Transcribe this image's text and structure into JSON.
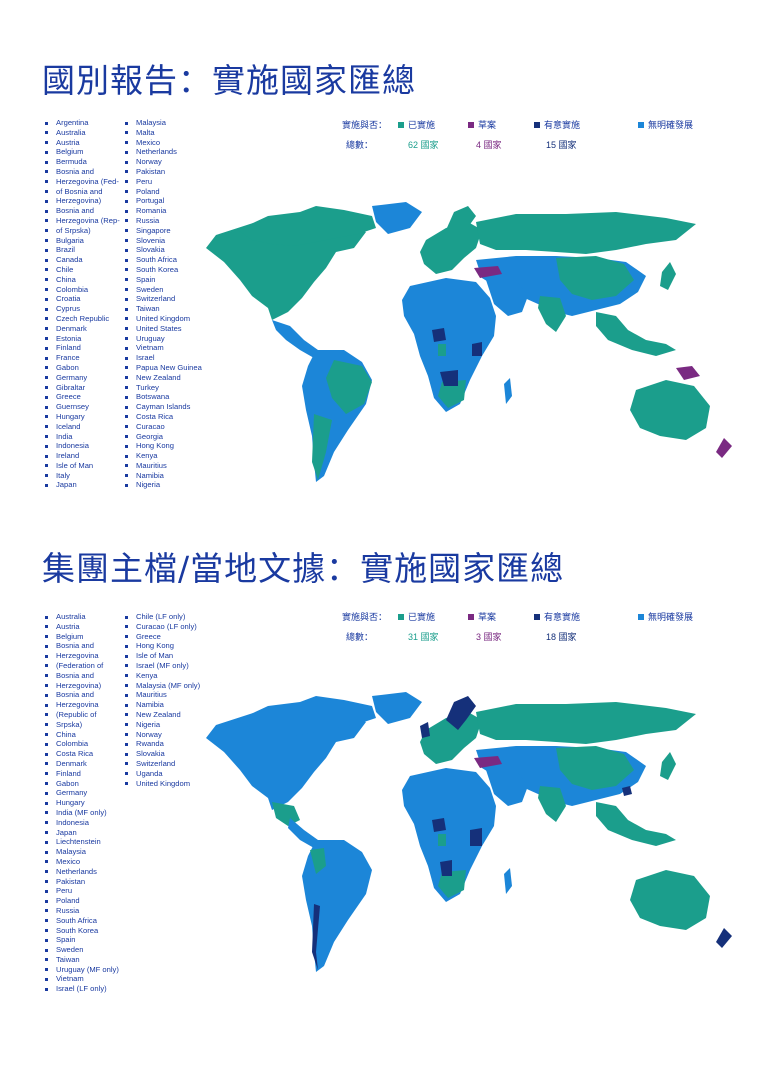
{
  "colors": {
    "implemented": "#1b9e8c",
    "draft": "#7a2a82",
    "intended": "#15307a",
    "no_plan": "#1c86d8"
  },
  "report1": {
    "title": "國別報告：實施國家匯總",
    "legend": {
      "label": "實施與否：",
      "implemented": "已實施",
      "draft": "草案",
      "intended": "有意實施",
      "no_plan": "無明確發展"
    },
    "totals": {
      "label": "總數：",
      "implemented": "62 國家",
      "draft": "4 國家",
      "intended": "15 國家"
    },
    "col1": [
      "Argentina",
      "Australia",
      "Austria",
      "Belgium",
      "Bermuda",
      "Bosnia and",
      "Herzegovina (Fed-",
      "of Bosnia and",
      "Herzegovina)",
      "Bosnia and",
      "Herzegovina (Rep-",
      "of Srpska)",
      "Bulgaria",
      "Brazil",
      "Canada",
      "Chile",
      "China",
      "Colombia",
      "Croatia",
      "Cyprus",
      "Czech Republic",
      "Denmark",
      "Estonia",
      "Finland",
      "France",
      "Gabon",
      "Germany",
      "Gibraltar",
      "Greece",
      "Guernsey",
      "Hungary",
      "Iceland",
      "India",
      "Indonesia",
      "Ireland",
      "Isle of Man",
      "Italy",
      "Japan"
    ],
    "col2": [
      "Malaysia",
      "Malta",
      "Mexico",
      "Netherlands",
      "Norway",
      "Pakistan",
      "Peru",
      "Poland",
      "Portugal",
      "Romania",
      "Russia",
      "Singapore",
      "Slovenia",
      "Slovakia",
      "South Africa",
      "South Korea",
      "Spain",
      "Sweden",
      "Switzerland",
      "Taiwan",
      "United Kingdom",
      "United States",
      "Uruguay",
      "Vietnam",
      "Israel",
      "Papua New Guinea",
      "New Zealand",
      "Turkey",
      "Botswana",
      "Cayman Islands",
      "Costa Rica",
      "Curacao",
      "Georgia",
      "Hong Kong",
      "Kenya",
      "Mauritius",
      "Namibia",
      "Nigeria"
    ]
  },
  "report2": {
    "title": "集團主檔/當地文據：實施國家匯總",
    "legend": {
      "label": "實施與否：",
      "implemented": "已實施",
      "draft": "草案",
      "intended": "有意實施",
      "no_plan": "無明確發展"
    },
    "totals": {
      "label": "總數：",
      "implemented": "31 國家",
      "draft": "3 國家",
      "intended": "18 國家"
    },
    "col1": [
      "Australia",
      "Austria",
      "Belgium",
      "Bosnia and",
      "Herzegovina",
      "(Federation of",
      "Bosnia and",
      "Herzegovina)",
      "Bosnia and",
      "Herzegovina",
      "(Republic of",
      "Srpska)",
      "China",
      "Colombia",
      "Costa Rica",
      "Denmark",
      "Finland",
      "Gabon",
      "Germany",
      "Hungary",
      "India (MF only)",
      "Indonesia",
      "Japan",
      "Liechtenstein",
      "Malaysia",
      "Mexico",
      "Netherlands",
      "Pakistan",
      "Peru",
      "Poland",
      "Russia",
      "South Africa",
      "South Korea",
      "Spain",
      "Sweden",
      "Taiwan",
      "Uruguay (MF only)",
      "Vietnam",
      "Israel (LF only)"
    ],
    "col2": [
      "Chile (LF only)",
      "Curacao (LF only)",
      "Greece",
      "Hong Kong",
      "Isle of Man",
      "Israel (MF only)",
      "Kenya",
      "Malaysia (MF only)",
      "Mauritius",
      "Namibia",
      "New Zealand",
      "Nigeria",
      "Norway",
      "Rwanda",
      "Slovakia",
      "Switzerland",
      "Uganda",
      "United Kingdom"
    ]
  }
}
